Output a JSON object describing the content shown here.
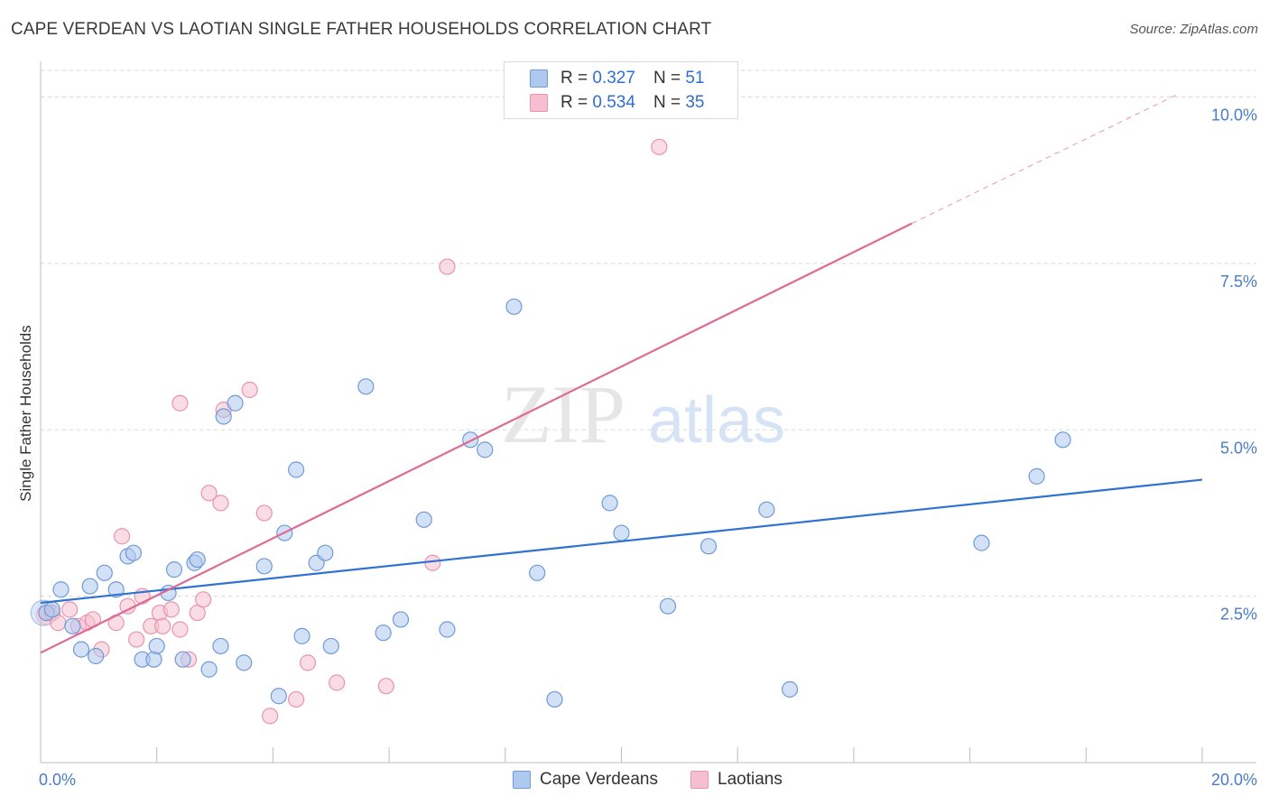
{
  "title": "CAPE VERDEAN VS LAOTIAN SINGLE FATHER HOUSEHOLDS CORRELATION CHART",
  "source": "Source: ZipAtlas.com",
  "watermark": {
    "zip": "ZIP",
    "atlas": "atlas"
  },
  "legend": {
    "rows": [
      {
        "r_label": "R =",
        "r_value": "0.327",
        "n_label": "N =",
        "n_value": "51"
      },
      {
        "r_label": "R =",
        "r_value": "0.534",
        "n_label": "N =",
        "n_value": "35"
      }
    ]
  },
  "bottom_legend": {
    "series1": "Cape Verdeans",
    "series2": "Laotians"
  },
  "colors": {
    "blue_fill": "#aec9ef",
    "blue_stroke": "#6f9ad6",
    "blue_line": "#2f72d0",
    "pink_fill": "#f6bfd0",
    "pink_stroke": "#e993b0",
    "pink_line": "#e06a93",
    "grid": "#d8d8d8",
    "tick_text": "#4a7cc7"
  },
  "chart_data": {
    "type": "scatter",
    "title": "CAPE VERDEAN VS LAOTIAN SINGLE FATHER HOUSEHOLDS CORRELATION CHART",
    "xlabel": "",
    "ylabel": "Single Father Households",
    "xlim": [
      0,
      20
    ],
    "ylim": [
      0,
      10.4
    ],
    "x_tick_labels": [
      "0.0%",
      "20.0%"
    ],
    "y_ticks": [
      2.5,
      5.0,
      7.5,
      10.0
    ],
    "y_tick_labels": [
      "2.5%",
      "5.0%",
      "7.5%",
      "10.0%"
    ],
    "grid": true,
    "series": [
      {
        "name": "Cape Verdeans",
        "r": 0.327,
        "n": 51,
        "trend": {
          "x": [
            0,
            20
          ],
          "y": [
            2.4,
            4.25
          ]
        },
        "points": [
          [
            0.1,
            2.25
          ],
          [
            0.2,
            2.3
          ],
          [
            0.35,
            2.6
          ],
          [
            0.55,
            2.05
          ],
          [
            0.7,
            1.7
          ],
          [
            0.85,
            2.65
          ],
          [
            0.95,
            1.6
          ],
          [
            1.1,
            2.85
          ],
          [
            1.3,
            2.6
          ],
          [
            1.5,
            3.1
          ],
          [
            1.6,
            3.15
          ],
          [
            1.75,
            1.55
          ],
          [
            1.95,
            1.55
          ],
          [
            2.0,
            1.75
          ],
          [
            2.2,
            2.55
          ],
          [
            2.3,
            2.9
          ],
          [
            2.45,
            1.55
          ],
          [
            2.65,
            3.0
          ],
          [
            2.7,
            3.05
          ],
          [
            2.9,
            1.4
          ],
          [
            3.1,
            1.75
          ],
          [
            3.15,
            5.2
          ],
          [
            3.35,
            5.4
          ],
          [
            3.5,
            1.5
          ],
          [
            3.85,
            2.95
          ],
          [
            4.1,
            1.0
          ],
          [
            4.2,
            3.45
          ],
          [
            4.4,
            4.4
          ],
          [
            4.5,
            1.9
          ],
          [
            4.75,
            3.0
          ],
          [
            4.9,
            3.15
          ],
          [
            5.0,
            1.75
          ],
          [
            5.6,
            5.65
          ],
          [
            5.9,
            1.95
          ],
          [
            6.2,
            2.15
          ],
          [
            6.6,
            3.65
          ],
          [
            7.0,
            2.0
          ],
          [
            7.4,
            4.85
          ],
          [
            7.65,
            4.7
          ],
          [
            8.15,
            6.85
          ],
          [
            8.55,
            2.85
          ],
          [
            8.85,
            0.95
          ],
          [
            9.8,
            3.9
          ],
          [
            10.0,
            3.45
          ],
          [
            10.8,
            2.35
          ],
          [
            11.5,
            3.25
          ],
          [
            12.5,
            3.8
          ],
          [
            12.9,
            1.1
          ],
          [
            16.2,
            3.3
          ],
          [
            17.15,
            4.3
          ],
          [
            17.6,
            4.85
          ]
        ]
      },
      {
        "name": "Laotians",
        "r": 0.534,
        "n": 35,
        "trend": {
          "x": [
            0,
            15.0
          ],
          "y": [
            1.65,
            8.1
          ]
        },
        "trend_dashed": {
          "x": [
            15.0,
            19.6
          ],
          "y": [
            8.1,
            10.05
          ]
        },
        "points": [
          [
            0.1,
            2.25
          ],
          [
            0.2,
            2.25
          ],
          [
            0.3,
            2.1
          ],
          [
            0.5,
            2.3
          ],
          [
            0.65,
            2.05
          ],
          [
            0.8,
            2.1
          ],
          [
            0.9,
            2.15
          ],
          [
            1.05,
            1.7
          ],
          [
            1.3,
            2.1
          ],
          [
            1.4,
            3.4
          ],
          [
            1.5,
            2.35
          ],
          [
            1.65,
            1.85
          ],
          [
            1.75,
            2.5
          ],
          [
            1.9,
            2.05
          ],
          [
            2.05,
            2.25
          ],
          [
            2.1,
            2.05
          ],
          [
            2.25,
            2.3
          ],
          [
            2.4,
            2.0
          ],
          [
            2.4,
            5.4
          ],
          [
            2.55,
            1.55
          ],
          [
            2.7,
            2.25
          ],
          [
            2.8,
            2.45
          ],
          [
            2.9,
            4.05
          ],
          [
            3.1,
            3.9
          ],
          [
            3.15,
            5.3
          ],
          [
            3.6,
            5.6
          ],
          [
            3.85,
            3.75
          ],
          [
            3.95,
            0.7
          ],
          [
            4.4,
            0.95
          ],
          [
            4.6,
            1.5
          ],
          [
            5.1,
            1.2
          ],
          [
            5.95,
            1.15
          ],
          [
            6.75,
            3.0
          ],
          [
            7.0,
            7.45
          ],
          [
            10.65,
            9.25
          ]
        ]
      }
    ]
  }
}
